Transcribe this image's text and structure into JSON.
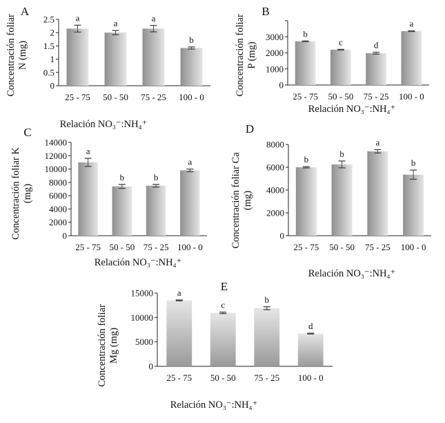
{
  "chart_data": [
    {
      "type": "bar",
      "panel_label": "A",
      "categories": [
        "25 - 75",
        "50 - 50",
        "75 - 25",
        "100 - 0"
      ],
      "values": [
        2.15,
        2.0,
        2.15,
        1.42
      ],
      "errors": [
        0.13,
        0.08,
        0.12,
        0.04
      ],
      "significance": [
        "a",
        "a",
        "a",
        "b"
      ],
      "ylabel": [
        "Concentración foliar",
        "N  (mg)"
      ],
      "xlabel": "Relación NO₃⁻:NH₄⁺",
      "ylim": [
        0,
        2.5
      ],
      "yticks": [
        "0",
        "0.5",
        "1",
        "1.5",
        "2",
        "2.5"
      ],
      "grid": false
    },
    {
      "type": "bar",
      "panel_label": "B",
      "categories": [
        "25 - 75",
        "50 - 50",
        "75 - 25",
        "100 - 0"
      ],
      "values": [
        2720,
        2200,
        1980,
        3350
      ],
      "errors": [
        20,
        20,
        60,
        20
      ],
      "significance": [
        "b",
        "c",
        "d",
        "a"
      ],
      "ylabel": [
        "Concentración foliar",
        "P (mg)"
      ],
      "xlabel": "Relación NO₃⁻:NH₄⁺",
      "ylim": [
        0,
        4000
      ],
      "yticks": [
        "0",
        "1000",
        "2000",
        "3000"
      ],
      "grid": false
    },
    {
      "type": "bar",
      "panel_label": "C",
      "categories": [
        "25 - 75",
        "50 - 50",
        "75 - 25",
        "100 - 0"
      ],
      "values": [
        11000,
        7400,
        7500,
        9800
      ],
      "errors": [
        600,
        300,
        200,
        200
      ],
      "significance": [
        "a",
        "b",
        "b",
        "a"
      ],
      "ylabel": [
        "Concentración foliar K",
        "(mg)"
      ],
      "xlabel": "Relación NO₃⁻:NH₄⁺",
      "ylim": [
        0,
        14000
      ],
      "yticks": [
        "0",
        "2000",
        "4000",
        "6000",
        "8000",
        "10000",
        "12000",
        "14000"
      ],
      "grid": false
    },
    {
      "type": "bar",
      "panel_label": "D",
      "categories": [
        "25 - 75",
        "50 - 50",
        "75 - 25",
        "100 - 0"
      ],
      "values": [
        6000,
        6250,
        7400,
        5350
      ],
      "errors": [
        60,
        300,
        150,
        400
      ],
      "significance": [
        "b",
        "b",
        "a",
        "b"
      ],
      "ylabel": [
        "Concentración foliar Ca",
        "(mg)"
      ],
      "xlabel": "Relación NO₃⁻:NH₄⁺",
      "ylim": [
        0,
        8000
      ],
      "yticks": [
        "0",
        "2000",
        "4000",
        "6000",
        "8000"
      ],
      "grid": false
    },
    {
      "type": "bar",
      "panel_label": "E",
      "categories": [
        "25 - 75",
        "50 - 50",
        "75 - 25",
        "100 - 0"
      ],
      "values": [
        13500,
        10950,
        11900,
        6700
      ],
      "errors": [
        100,
        150,
        300,
        80
      ],
      "significance": [
        "a",
        "c",
        "b",
        "d"
      ],
      "ylabel": [
        "Concentración foliar",
        "Mg (mg)"
      ],
      "xlabel": "Relación NO₃⁻:NH₄⁺",
      "ylim": [
        0,
        15000
      ],
      "yticks": [
        "0",
        "5000",
        "10000",
        "15000"
      ],
      "grid": false
    }
  ],
  "colors": {
    "bar_dark": "#8f8f8f",
    "bar_light": "#e6e6e6",
    "axis": "#222222",
    "error_bar": "#444444"
  }
}
